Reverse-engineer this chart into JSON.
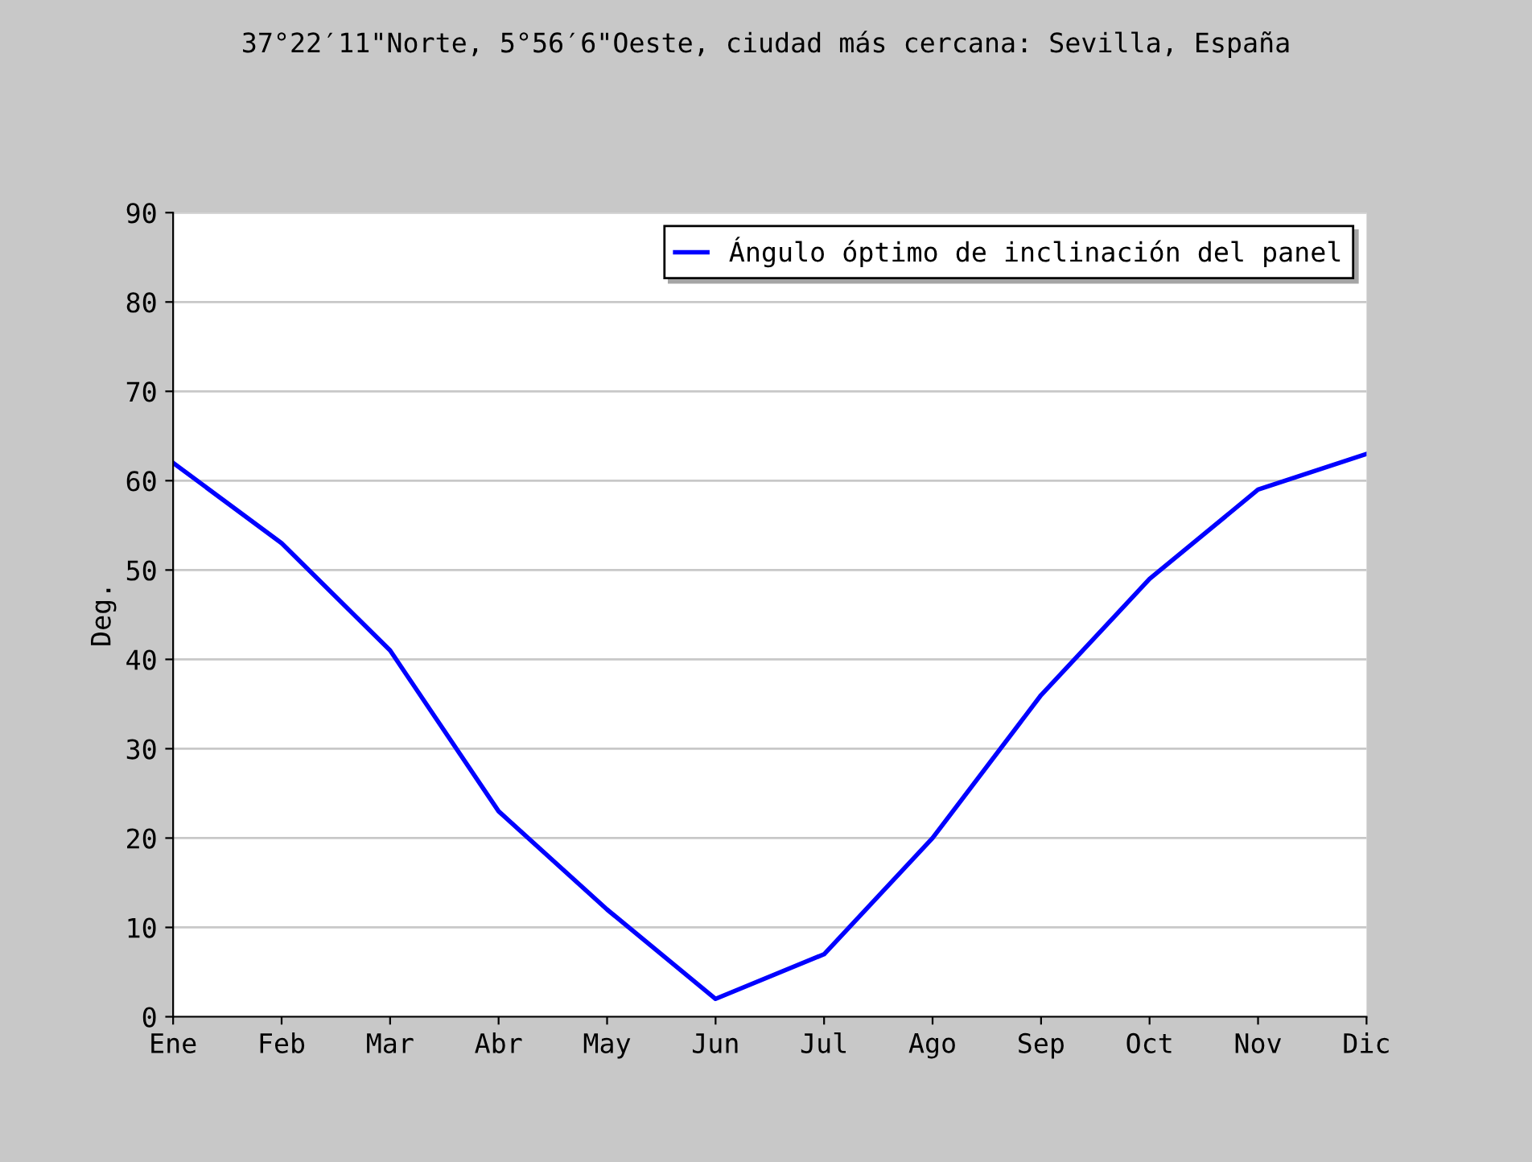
{
  "chart_data": {
    "type": "line",
    "title": "37°22′11\"Norte, 5°56′6\"Oeste, ciudad más cercana: Sevilla, España",
    "ylabel": "Deg.",
    "categories": [
      "Ene",
      "Feb",
      "Mar",
      "Abr",
      "May",
      "Jun",
      "Jul",
      "Ago",
      "Sep",
      "Oct",
      "Nov",
      "Dic"
    ],
    "series": [
      {
        "name": "Ángulo óptimo de inclinación del panel",
        "color": "#0000ff",
        "values": [
          62,
          53,
          41,
          23,
          12,
          2,
          7,
          20,
          36,
          49,
          59,
          63
        ]
      }
    ],
    "ylim": [
      0,
      90
    ],
    "yticks": [
      0,
      10,
      20,
      30,
      40,
      50,
      60,
      70,
      80,
      90
    ],
    "grid": "y",
    "legend": "top right",
    "marker": "none",
    "line_style": "solid"
  }
}
